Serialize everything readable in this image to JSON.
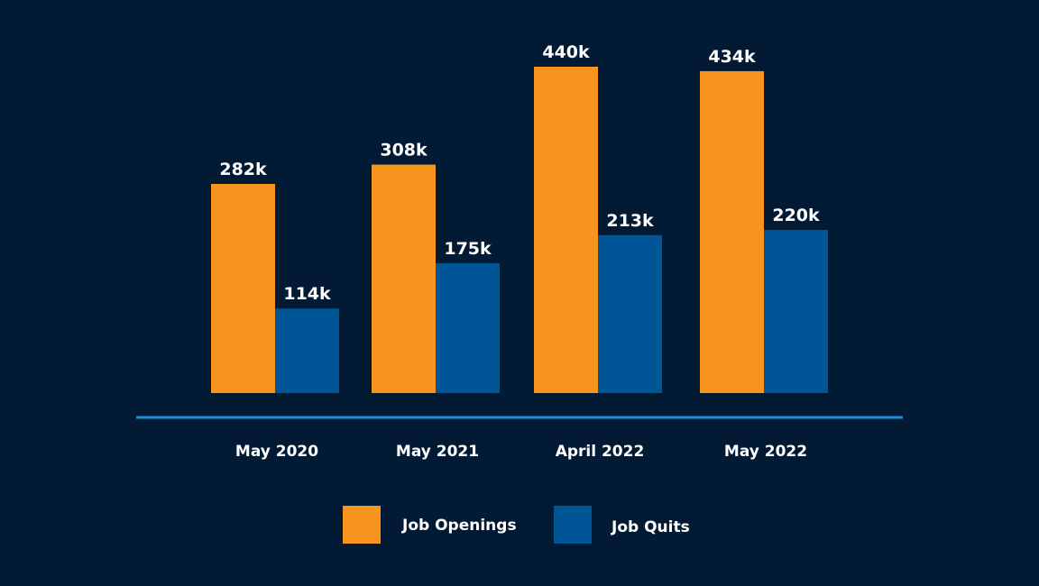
{
  "chart_data": {
    "type": "bar",
    "categories": [
      "May 2020",
      "May 2021",
      "April 2022",
      "May 2022"
    ],
    "series": [
      {
        "name": "Job Openings",
        "values": [
          282,
          308,
          440,
          434
        ],
        "labels": [
          "282k",
          "308k",
          "440k",
          "434k"
        ],
        "color": "#f7941d"
      },
      {
        "name": "Job Quits",
        "values": [
          114,
          175,
          213,
          220
        ],
        "labels": [
          "114k",
          "175k",
          "213k",
          "220k"
        ],
        "color": "#005596"
      }
    ],
    "unit": "k",
    "ylim": [
      0,
      440
    ],
    "grid": false,
    "legend_placement": "bottom",
    "background": "#021a33",
    "axis_color": "#1a8fd6"
  }
}
